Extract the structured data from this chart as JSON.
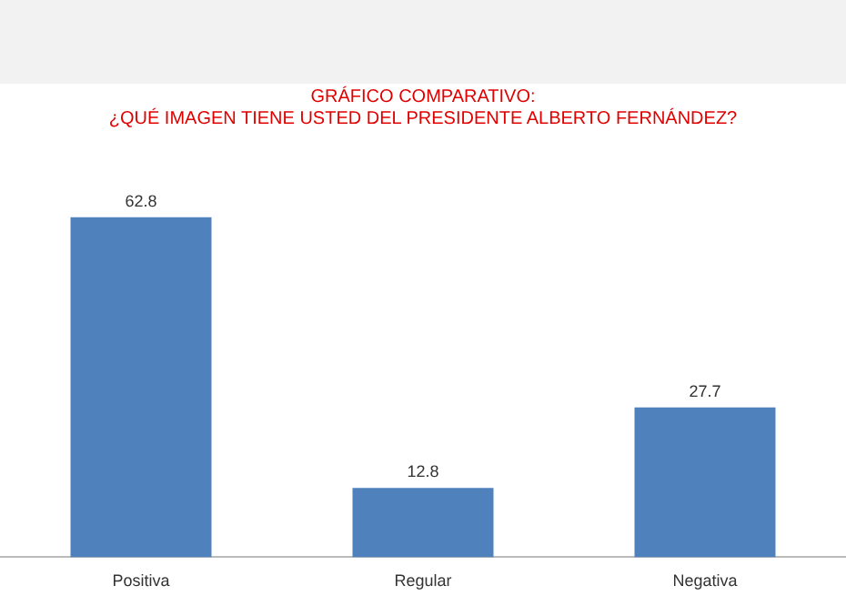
{
  "chart_data": {
    "type": "bar",
    "title": "GRÁFICO COMPARATIVO:\n¿QUÉ IMAGEN TIENE USTED DEL PRESIDENTE ALBERTO FERNÁNDEZ?",
    "categories": [
      "Positiva",
      "Regular",
      "Negativa"
    ],
    "values": [
      62.8,
      12.8,
      27.7
    ],
    "color": "#4f81bd",
    "data_labels": true,
    "grid": false,
    "legend": false
  }
}
